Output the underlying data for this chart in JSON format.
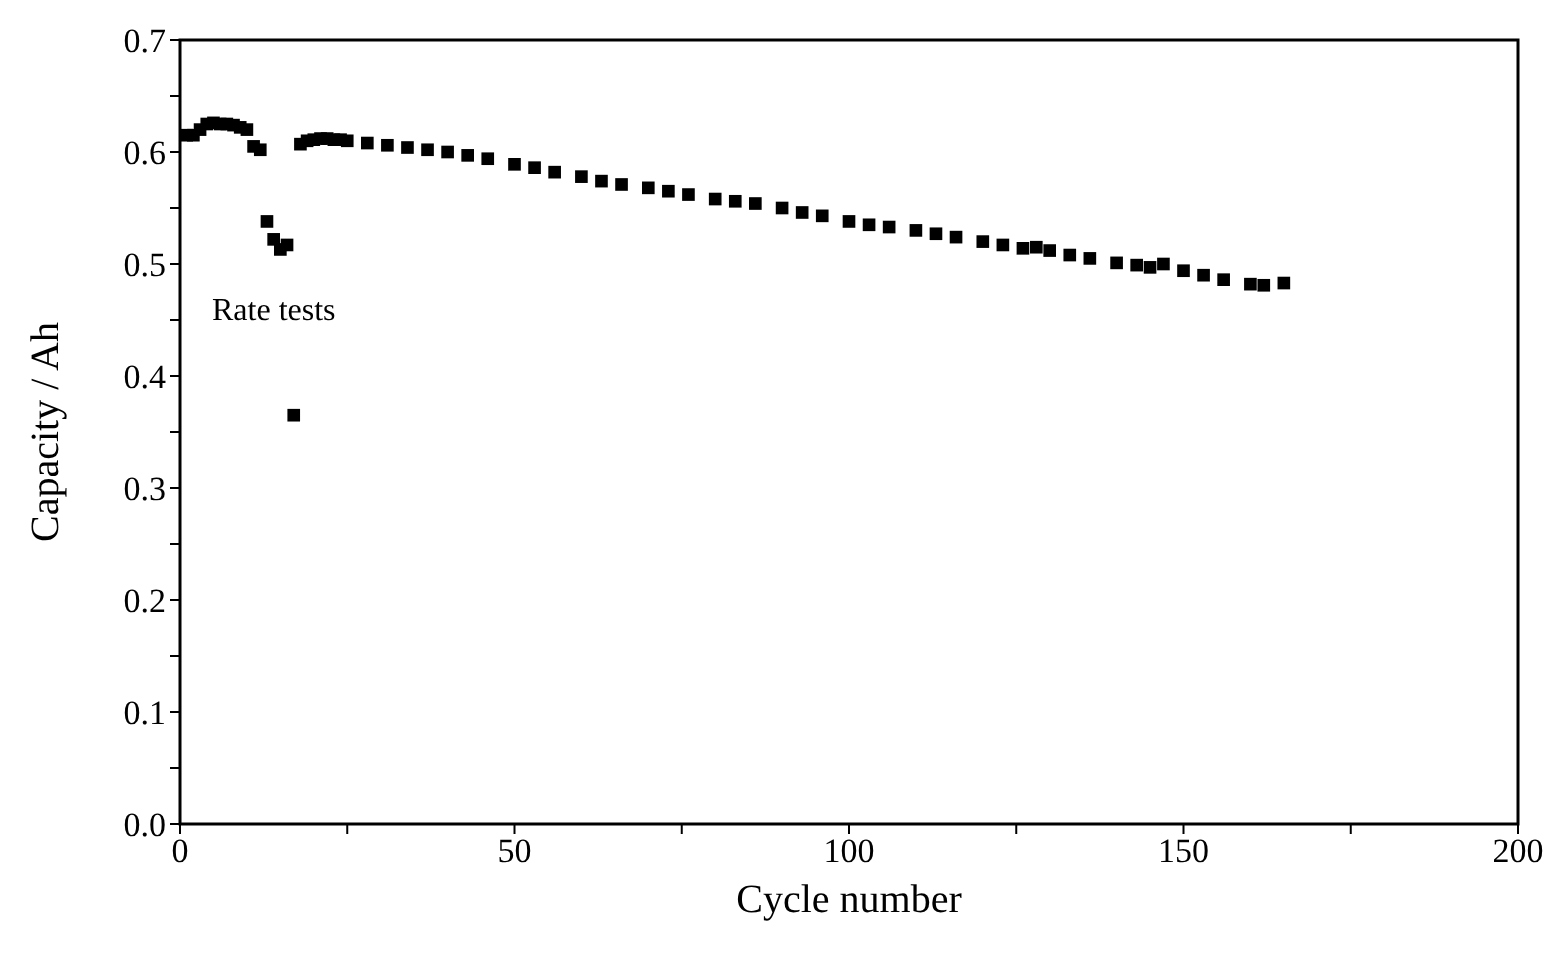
{
  "chart_data": {
    "type": "scatter",
    "xlabel": "Cycle number",
    "ylabel": "Capacity  /  Ah",
    "annotations": [
      "Rate tests"
    ],
    "marker": "square",
    "grid": false,
    "legend": false,
    "xlim": [
      0,
      200
    ],
    "xticks": [
      0,
      {
        "value": 25,
        "label": null
      },
      50,
      {
        "value": 75,
        "label": null
      },
      100,
      {
        "value": 125,
        "label": null
      },
      150,
      {
        "value": 175,
        "label": null
      },
      200
    ],
    "ylim": [
      0,
      0.7
    ],
    "yticks": [
      {
        "value": 0,
        "label": "0.0"
      },
      {
        "value": 0.05,
        "label": null
      },
      0.1,
      {
        "value": 0.15,
        "label": null
      },
      0.2,
      {
        "value": 0.25,
        "label": null
      },
      0.3,
      {
        "value": 0.35,
        "label": null
      },
      0.4,
      {
        "value": 0.45,
        "label": null
      },
      0.5,
      {
        "value": 0.55,
        "label": null
      },
      0.6,
      {
        "value": 0.65,
        "label": null
      },
      0.7
    ],
    "series": [
      {
        "color": "#000000",
        "x": [
          1,
          2,
          3,
          4,
          5,
          6,
          7,
          8,
          9,
          10,
          11,
          12,
          13,
          14,
          15,
          16,
          17,
          18,
          19,
          20,
          21,
          22,
          23,
          24,
          25,
          28,
          31,
          34,
          37,
          40,
          43,
          46,
          50,
          53,
          56,
          60,
          63,
          66,
          70,
          73,
          76,
          80,
          83,
          86,
          90,
          93,
          96,
          100,
          103,
          106,
          110,
          113,
          116,
          120,
          123,
          126,
          128,
          130,
          133,
          136,
          140,
          143,
          145,
          147,
          150,
          153,
          156,
          160,
          162,
          165
        ],
        "values": [
          0.615,
          0.615,
          0.62,
          0.625,
          0.626,
          0.625,
          0.625,
          0.624,
          0.622,
          0.62,
          0.605,
          0.602,
          0.538,
          0.522,
          0.513,
          0.517,
          0.365,
          0.607,
          0.61,
          0.611,
          0.612,
          0.612,
          0.611,
          0.611,
          0.61,
          0.608,
          0.606,
          0.604,
          0.602,
          0.6,
          0.597,
          0.594,
          0.589,
          0.586,
          0.582,
          0.578,
          0.574,
          0.571,
          0.568,
          0.565,
          0.562,
          0.558,
          0.556,
          0.554,
          0.55,
          0.546,
          0.543,
          0.538,
          0.535,
          0.533,
          0.53,
          0.527,
          0.524,
          0.52,
          0.517,
          0.514,
          0.515,
          0.512,
          0.508,
          0.505,
          0.501,
          0.499,
          0.497,
          0.5,
          0.494,
          0.49,
          0.486,
          0.482,
          0.481,
          0.483
        ]
      }
    ]
  }
}
